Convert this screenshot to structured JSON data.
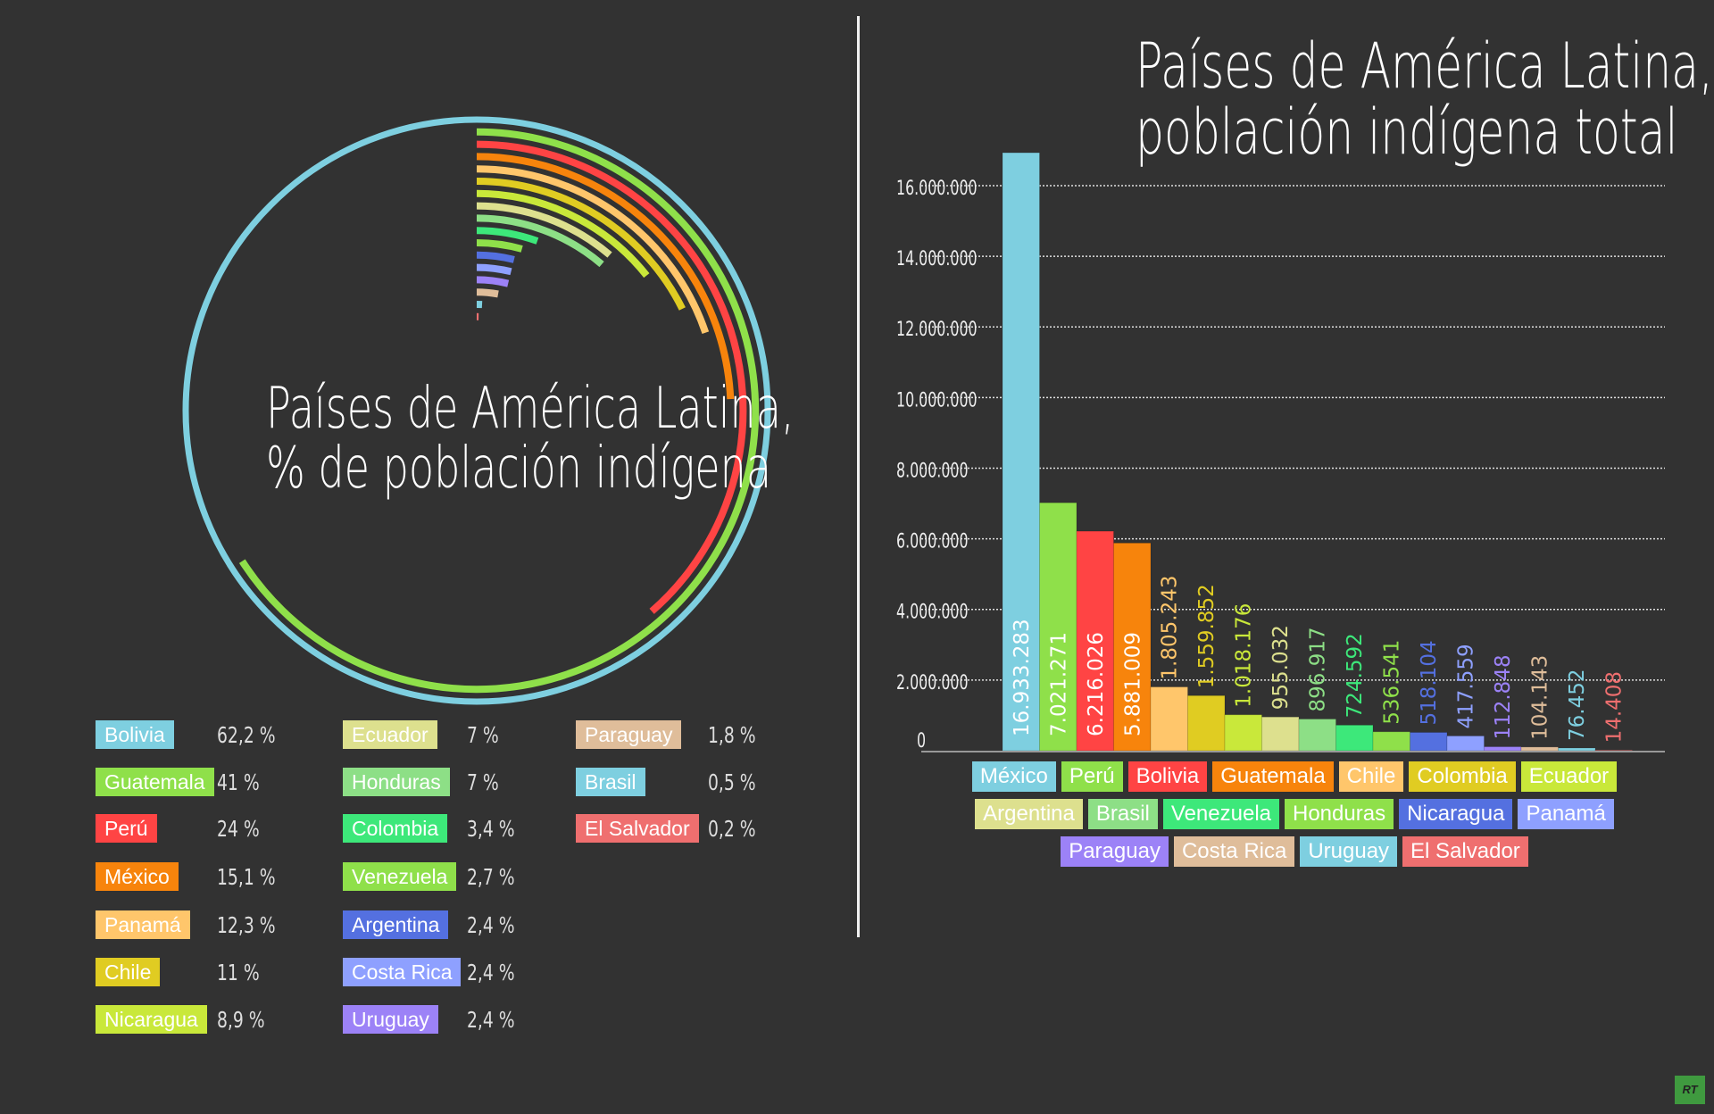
{
  "palette": [
    "#7ecfe0",
    "#8fe04a",
    "#ff4444",
    "#f7840c",
    "#ffc66b",
    "#e0cc22",
    "#c9e83a",
    "#dde08e",
    "#8ddf86",
    "#3de87a",
    "#8fe04a",
    "#5470e0",
    "#8ea0ff",
    "#9c82f7",
    "#dfbd9a",
    "#7ecfe0",
    "#ef6f6f"
  ],
  "background": "#323232",
  "chart_data": [
    {
      "type": "radial-bar",
      "title": "Países de América Latina, % de población indígena",
      "title_lines": [
        "Países de América Latina,",
        "% de población indígena"
      ],
      "categories": [
        "Bolivia",
        "Guatemala",
        "Perú",
        "México",
        "Panamá",
        "Chile",
        "Nicaragua",
        "Ecuador",
        "Honduras",
        "Colombia",
        "Venezuela",
        "Argentina",
        "Costa Rica",
        "Uruguay",
        "Paraguay",
        "Brasil",
        "El Salvador"
      ],
      "values": [
        62.2,
        41,
        24,
        15.1,
        12.3,
        11,
        8.9,
        7,
        7,
        3.4,
        2.7,
        2.4,
        2.4,
        2.4,
        1.8,
        0.5,
        0.2
      ],
      "value_labels": [
        "62,2 %",
        "41 %",
        "24 %",
        "15,1 %",
        "12,3 %",
        "11 %",
        "8,9 %",
        "7 %",
        "7 %",
        "3,4 %",
        "2,7 %",
        "2,4 %",
        "2,4 %",
        "2,4 %",
        "1,8 %",
        "0,5 %",
        "0,2 %"
      ],
      "legend": "bottom"
    },
    {
      "type": "bar",
      "title": "Países de América Latina, población indígena total",
      "title_lines": [
        "Países de América Latina,",
        "población indígena total"
      ],
      "categories": [
        "México",
        "Perú",
        "Bolivia",
        "Guatemala",
        "Chile",
        "Colombia",
        "Ecuador",
        "Argentina",
        "Brasil",
        "Venezuela",
        "Honduras",
        "Nicaragua",
        "Panamá",
        "Paraguay",
        "Costa Rica",
        "Uruguay",
        "El Salvador"
      ],
      "values": [
        16933283,
        7021271,
        6216026,
        5881009,
        1805243,
        1559852,
        1018176,
        955032,
        896917,
        724592,
        536541,
        518104,
        417559,
        112848,
        104143,
        76452,
        14408
      ],
      "value_labels": [
        "16.933.283",
        "7.021.271",
        "6.216.026",
        "5.881.009",
        "1.805.243",
        "1.559.852",
        "1.018.176",
        "955.032",
        "896.917",
        "724.592",
        "536.541",
        "518.104",
        "417.559",
        "112.848",
        "104.143",
        "76.452",
        "14.408"
      ],
      "ylim": [
        0,
        16000000
      ],
      "yticks": [
        0,
        2000000,
        4000000,
        6000000,
        8000000,
        10000000,
        12000000,
        14000000,
        16000000
      ],
      "ytick_labels": [
        "0",
        "2.000.000",
        "4.000.000",
        "6.000.000",
        "8.000.000",
        "10.000.000",
        "12.000.000",
        "14.000.000",
        "16.000.000"
      ],
      "grid": true,
      "legend": "bottom"
    }
  ],
  "logo": "RT"
}
